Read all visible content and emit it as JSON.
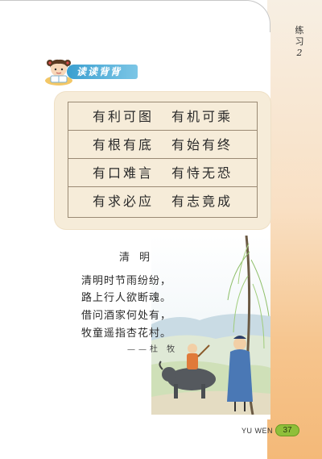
{
  "section": {
    "label": "练习",
    "number": "2"
  },
  "banner": {
    "title": "读读背背"
  },
  "idioms": [
    [
      "有利可图",
      "有机可乘"
    ],
    [
      "有根有底",
      "有始有终"
    ],
    [
      "有口难言",
      "有恃无恐"
    ],
    [
      "有求必应",
      "有志竟成"
    ]
  ],
  "poem": {
    "title": "清明",
    "lines": [
      "清明时节雨纷纷，",
      "路上行人欲断魂。",
      "借问酒家何处有，",
      "牧童遥指杏花村。"
    ],
    "author": "——杜  牧"
  },
  "footer": {
    "text": "YU WEN",
    "page": "37"
  },
  "colors": {
    "banner": "#3a9fd0",
    "board": "#f6ecd9",
    "badge": "#8fbf3a",
    "strip": "#f6c58e"
  }
}
